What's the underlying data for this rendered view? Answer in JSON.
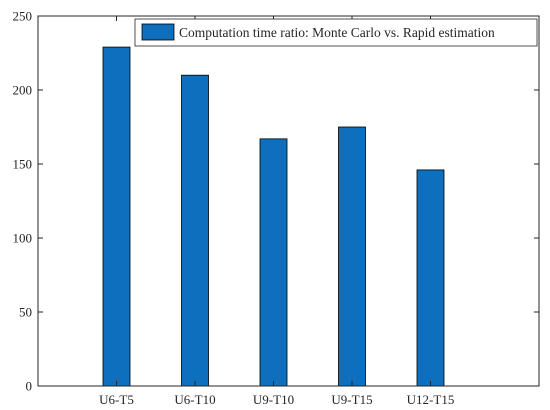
{
  "chart_data": {
    "type": "bar",
    "categories": [
      "U6-T5",
      "U6-T10",
      "U9-T10",
      "U9-T15",
      "U12-T15"
    ],
    "series": [
      {
        "name": "Computation time ratio: Monte Carlo vs. Rapid estimation",
        "values": [
          229,
          210,
          167,
          175,
          146
        ],
        "color": "#0E6FBF"
      }
    ],
    "ylim": [
      0,
      250
    ],
    "yticks": [
      0,
      50,
      100,
      150,
      200,
      250
    ],
    "legend_position": "top-right",
    "grid": false
  }
}
